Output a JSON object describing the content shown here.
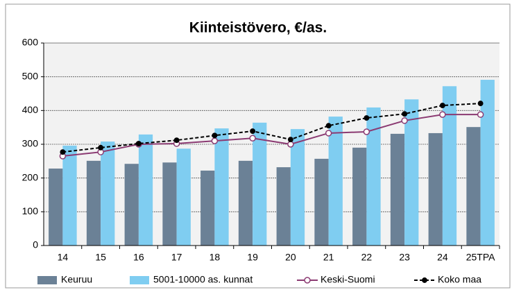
{
  "chart_data": {
    "type": "bar-line",
    "title": "Kiinteistövero, €/as.",
    "categories": [
      "14",
      "15",
      "16",
      "17",
      "18",
      "19",
      "20",
      "21",
      "22",
      "23",
      "24",
      "25TPA"
    ],
    "series": [
      {
        "name": "Keuruu",
        "type": "bar",
        "color": "#6b8196",
        "values": [
          228,
          251,
          242,
          246,
          222,
          251,
          232,
          257,
          290,
          331,
          333,
          351
        ]
      },
      {
        "name": "5001-10000 as. kunnat",
        "type": "bar",
        "color": "#7fcdf1",
        "values": [
          296,
          308,
          329,
          287,
          347,
          364,
          345,
          382,
          409,
          433,
          472,
          491
        ]
      },
      {
        "name": "Keski-Suomi",
        "type": "line",
        "color": "#8b3a72",
        "marker": "open",
        "values": [
          265,
          277,
          300,
          302,
          310,
          318,
          300,
          333,
          337,
          370,
          388,
          388
        ]
      },
      {
        "name": "Koko maa",
        "type": "line",
        "color": "#000000",
        "dash": true,
        "marker": "filled",
        "values": [
          277,
          290,
          302,
          312,
          326,
          339,
          314,
          355,
          378,
          390,
          415,
          421
        ]
      }
    ],
    "ylim": [
      0,
      600
    ],
    "yticks": [
      0,
      100,
      200,
      300,
      400,
      500,
      600
    ],
    "grid": true,
    "legend": "bottom"
  }
}
